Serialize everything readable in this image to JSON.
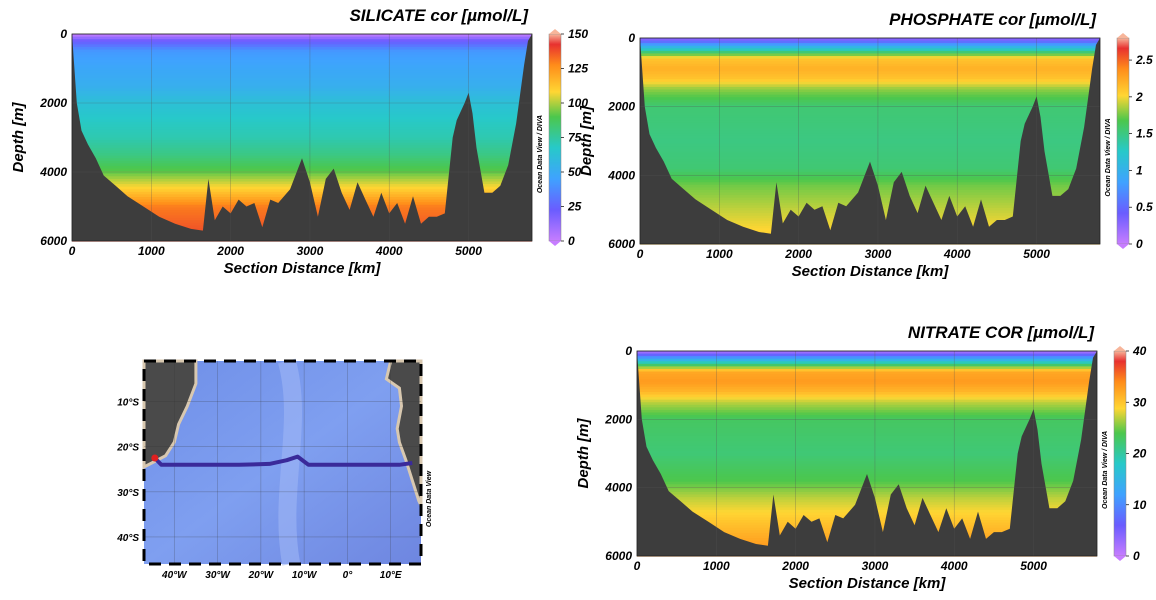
{
  "figure": {
    "credit": "Ocean Data View / DIVA",
    "map_credit": "Ocean Data View"
  },
  "chart_data": [
    {
      "type": "heatmap",
      "title": "SILICATE cor [µmol/L]",
      "xlabel": "Section Distance [km]",
      "ylabel": "Depth [m]",
      "xlim": [
        0,
        5800
      ],
      "ylim": [
        6000,
        0
      ],
      "xticks": [
        0,
        1000,
        2000,
        3000,
        4000,
        5000
      ],
      "yticks": [
        0,
        2000,
        4000,
        6000
      ],
      "colorbar": {
        "min": 0,
        "max": 150,
        "ticks": [
          0,
          25,
          50,
          75,
          100,
          125,
          150
        ]
      },
      "profile_depth": [
        0,
        60,
        150,
        500,
        1000,
        1500,
        2000,
        2500,
        3000,
        3500,
        4000,
        4500,
        5000,
        6000
      ],
      "profile_values": [
        2,
        5,
        18,
        42,
        48,
        52,
        62,
        68,
        72,
        80,
        92,
        110,
        130,
        140
      ],
      "bathymetry": {
        "distance_km": [
          0,
          60,
          120,
          200,
          300,
          400,
          550,
          700,
          900,
          1100,
          1300,
          1500,
          1650,
          1720,
          1800,
          1900,
          2000,
          2100,
          2200,
          2300,
          2400,
          2500,
          2600,
          2750,
          2900,
          3000,
          3100,
          3200,
          3300,
          3400,
          3500,
          3600,
          3700,
          3800,
          3900,
          4000,
          4100,
          4200,
          4300,
          4400,
          4500,
          4600,
          4700,
          4800,
          4850,
          4950,
          5000,
          5050,
          5100,
          5200,
          5300,
          5400,
          5500,
          5600,
          5700,
          5750,
          5800
        ],
        "depth_m": [
          0,
          2000,
          2800,
          3200,
          3600,
          4100,
          4400,
          4700,
          5000,
          5300,
          5500,
          5650,
          5700,
          4200,
          5400,
          5000,
          5200,
          4800,
          5000,
          4900,
          5600,
          4800,
          4900,
          4500,
          3600,
          4300,
          5300,
          4200,
          3900,
          4600,
          5100,
          4300,
          4800,
          5300,
          4600,
          5200,
          4900,
          5500,
          4700,
          5500,
          5300,
          5300,
          5200,
          3000,
          2500,
          2000,
          1700,
          2300,
          3300,
          4600,
          4600,
          4400,
          3800,
          2600,
          900,
          200,
          0
        ]
      }
    },
    {
      "type": "heatmap",
      "title": "PHOSPHATE cor [µmol/L]",
      "xlabel": "Section Distance [km]",
      "ylabel": "Depth [m]",
      "xlim": [
        0,
        5800
      ],
      "ylim": [
        6000,
        0
      ],
      "xticks": [
        0,
        1000,
        2000,
        3000,
        4000,
        5000
      ],
      "yticks": [
        0,
        2000,
        4000,
        6000
      ],
      "colorbar": {
        "min": 0,
        "max": 2.8,
        "ticks": [
          0,
          0.5,
          1,
          1.5,
          2,
          2.5
        ]
      },
      "profile_depth": [
        0,
        100,
        250,
        400,
        600,
        900,
        1200,
        1500,
        2000,
        3000,
        3800,
        4300,
        5000,
        6000
      ],
      "profile_values": [
        0.2,
        0.5,
        1.0,
        1.5,
        2.1,
        2.2,
        2.1,
        1.8,
        1.55,
        1.5,
        1.55,
        1.75,
        1.9,
        2.1
      ],
      "bathymetry": {
        "distance_km": [
          0,
          60,
          120,
          200,
          300,
          400,
          550,
          700,
          900,
          1100,
          1300,
          1500,
          1650,
          1720,
          1800,
          1900,
          2000,
          2100,
          2200,
          2300,
          2400,
          2500,
          2600,
          2750,
          2900,
          3000,
          3100,
          3200,
          3300,
          3400,
          3500,
          3600,
          3700,
          3800,
          3900,
          4000,
          4100,
          4200,
          4300,
          4400,
          4500,
          4600,
          4700,
          4800,
          4850,
          4950,
          5000,
          5050,
          5100,
          5200,
          5300,
          5400,
          5500,
          5600,
          5700,
          5750,
          5800
        ],
        "depth_m": [
          0,
          2000,
          2800,
          3200,
          3600,
          4100,
          4400,
          4700,
          5000,
          5300,
          5500,
          5650,
          5700,
          4200,
          5400,
          5000,
          5200,
          4800,
          5000,
          4900,
          5600,
          4800,
          4900,
          4500,
          3600,
          4300,
          5300,
          4200,
          3900,
          4600,
          5100,
          4300,
          4800,
          5300,
          4600,
          5200,
          4900,
          5500,
          4700,
          5500,
          5300,
          5300,
          5200,
          3000,
          2500,
          2000,
          1700,
          2300,
          3300,
          4600,
          4600,
          4400,
          3800,
          2600,
          900,
          200,
          0
        ]
      }
    },
    {
      "type": "heatmap",
      "title": "NITRATE COR [µmol/L]",
      "xlabel": "Section Distance [km]",
      "ylabel": "Depth [m]",
      "xlim": [
        0,
        5800
      ],
      "ylim": [
        6000,
        0
      ],
      "xticks": [
        0,
        1000,
        2000,
        3000,
        4000,
        5000
      ],
      "yticks": [
        0,
        2000,
        4000,
        6000
      ],
      "colorbar": {
        "min": 0,
        "max": 40,
        "ticks": [
          0,
          10,
          20,
          30,
          40
        ]
      },
      "profile_depth": [
        0,
        100,
        250,
        400,
        600,
        900,
        1200,
        1500,
        2000,
        3000,
        3800,
        4300,
        5000,
        6000
      ],
      "profile_values": [
        1,
        6,
        14,
        22,
        32,
        33,
        31,
        27,
        23,
        22,
        24,
        27,
        30,
        34
      ],
      "bathymetry": {
        "distance_km": [
          0,
          60,
          120,
          200,
          300,
          400,
          550,
          700,
          900,
          1100,
          1300,
          1500,
          1650,
          1720,
          1800,
          1900,
          2000,
          2100,
          2200,
          2300,
          2400,
          2500,
          2600,
          2750,
          2900,
          3000,
          3100,
          3200,
          3300,
          3400,
          3500,
          3600,
          3700,
          3800,
          3900,
          4000,
          4100,
          4200,
          4300,
          4400,
          4500,
          4600,
          4700,
          4800,
          4850,
          4950,
          5000,
          5050,
          5100,
          5200,
          5300,
          5400,
          5500,
          5600,
          5700,
          5750,
          5800
        ],
        "depth_m": [
          0,
          2000,
          2800,
          3200,
          3600,
          4100,
          4400,
          4700,
          5000,
          5300,
          5500,
          5650,
          5700,
          4200,
          5400,
          5000,
          5200,
          4800,
          5000,
          4900,
          5600,
          4800,
          4900,
          4500,
          3600,
          4300,
          5300,
          4200,
          3900,
          4600,
          5100,
          4300,
          4800,
          5300,
          4600,
          5200,
          4900,
          5500,
          4700,
          5500,
          5300,
          5300,
          5200,
          3000,
          2500,
          2000,
          1700,
          2300,
          3300,
          4600,
          4600,
          4400,
          3800,
          2600,
          900,
          200,
          0
        ]
      }
    },
    {
      "type": "map",
      "lon_range": [
        -47,
        17
      ],
      "lat_range": [
        -46,
        -1
      ],
      "lon_ticks": [
        "40°W",
        "30°W",
        "20°W",
        "10°W",
        "0°",
        "10°E"
      ],
      "lat_ticks": [
        "10°S",
        "20°S",
        "30°S",
        "40°S"
      ],
      "section_lon": [
        -44.5,
        -43,
        -35,
        -25,
        -18,
        -14,
        -11.5,
        -9,
        -6,
        0,
        6,
        12,
        15
      ],
      "section_lat": [
        -22.5,
        -24,
        -24,
        -24,
        -23.8,
        -23,
        -22.2,
        -24,
        -24,
        -24,
        -24,
        -24,
        -23.6
      ]
    }
  ]
}
